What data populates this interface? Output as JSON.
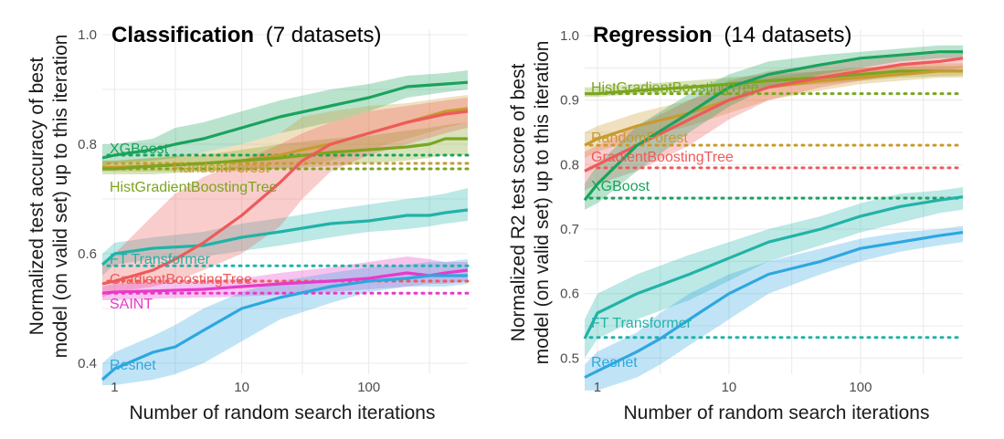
{
  "chart_data": [
    {
      "type": "line",
      "title": "Classification",
      "subtitle": "(7 datasets)",
      "xlabel": "Number of random search iterations",
      "ylabel_lines": [
        "Normalized test accuracy of best",
        "model (on valid set) up to this iteration"
      ],
      "x_scale": "log10",
      "xlim": [
        0.8,
        600
      ],
      "ylim": [
        0.38,
        1.01
      ],
      "x_ticks": [
        {
          "value": 1,
          "label": "1"
        },
        {
          "value": 10,
          "label": "10"
        },
        {
          "value": 100,
          "label": "100"
        }
      ],
      "y_ticks": [
        {
          "value": 0.4,
          "label": "0.4"
        },
        {
          "value": 0.6,
          "label": "0.6"
        },
        {
          "value": 0.8,
          "label": "0.8"
        },
        {
          "value": 1.0,
          "label": "1.0"
        }
      ],
      "series": [
        {
          "name": "XGBoost",
          "color": "#19a35c",
          "default_value": 0.78,
          "x": [
            0.8,
            1,
            2,
            3,
            5,
            10,
            20,
            50,
            100,
            200,
            400,
            600
          ],
          "y": [
            0.775,
            0.78,
            0.79,
            0.8,
            0.81,
            0.83,
            0.85,
            0.87,
            0.885,
            0.905,
            0.91,
            0.913
          ],
          "lower": [
            0.76,
            0.765,
            0.77,
            0.775,
            0.785,
            0.8,
            0.82,
            0.84,
            0.86,
            0.885,
            0.895,
            0.9
          ],
          "upper": [
            0.8,
            0.8,
            0.81,
            0.83,
            0.84,
            0.86,
            0.88,
            0.9,
            0.91,
            0.925,
            0.93,
            0.935
          ]
        },
        {
          "name": "RandomForest",
          "color": "#c99a2e",
          "default_value": 0.765,
          "x": [
            0.8,
            1,
            2,
            5,
            10,
            20,
            30,
            50,
            100,
            200,
            400,
            600
          ],
          "y": [
            0.758,
            0.758,
            0.76,
            0.765,
            0.77,
            0.78,
            0.79,
            0.8,
            0.82,
            0.84,
            0.86,
            0.865
          ],
          "lower": [
            0.75,
            0.75,
            0.75,
            0.75,
            0.75,
            0.755,
            0.76,
            0.77,
            0.79,
            0.81,
            0.83,
            0.84
          ],
          "upper": [
            0.77,
            0.77,
            0.775,
            0.785,
            0.8,
            0.82,
            0.85,
            0.86,
            0.87,
            0.875,
            0.885,
            0.89
          ]
        },
        {
          "name": "HistGradientBoostingTree",
          "color": "#7ba51f",
          "default_value": 0.755,
          "x": [
            0.8,
            1,
            2,
            5,
            10,
            20,
            50,
            100,
            200,
            300,
            400,
            600
          ],
          "y": [
            0.755,
            0.755,
            0.76,
            0.765,
            0.77,
            0.775,
            0.785,
            0.79,
            0.795,
            0.8,
            0.81,
            0.81
          ],
          "lower": [
            0.745,
            0.745,
            0.745,
            0.75,
            0.755,
            0.755,
            0.76,
            0.765,
            0.77,
            0.775,
            0.78,
            0.78
          ],
          "upper": [
            0.77,
            0.77,
            0.775,
            0.78,
            0.79,
            0.8,
            0.81,
            0.815,
            0.825,
            0.83,
            0.835,
            0.84
          ]
        },
        {
          "name": "FT Transformer",
          "color": "#21b3a8",
          "default_value": 0.578,
          "x": [
            0.8,
            1,
            2,
            5,
            10,
            20,
            50,
            100,
            200,
            300,
            400,
            600
          ],
          "y": [
            0.58,
            0.6,
            0.61,
            0.615,
            0.63,
            0.64,
            0.655,
            0.66,
            0.67,
            0.67,
            0.675,
            0.68
          ],
          "lower": [
            0.56,
            0.58,
            0.59,
            0.595,
            0.605,
            0.615,
            0.63,
            0.64,
            0.645,
            0.65,
            0.655,
            0.66
          ],
          "upper": [
            0.6,
            0.62,
            0.63,
            0.64,
            0.655,
            0.665,
            0.68,
            0.69,
            0.7,
            0.705,
            0.71,
            0.72
          ]
        },
        {
          "name": "GradientBoostingTree",
          "color": "#ee5a5a",
          "default_value": 0.55,
          "x": [
            0.8,
            1,
            2,
            3,
            5,
            10,
            20,
            30,
            50,
            100,
            200,
            400,
            600
          ],
          "y": [
            0.545,
            0.55,
            0.57,
            0.59,
            0.62,
            0.67,
            0.73,
            0.77,
            0.8,
            0.82,
            0.84,
            0.855,
            0.86
          ],
          "lower": [
            0.52,
            0.53,
            0.54,
            0.55,
            0.57,
            0.6,
            0.65,
            0.7,
            0.75,
            0.78,
            0.8,
            0.82,
            0.83
          ],
          "upper": [
            0.58,
            0.6,
            0.67,
            0.71,
            0.74,
            0.77,
            0.8,
            0.82,
            0.84,
            0.86,
            0.87,
            0.88,
            0.885
          ]
        },
        {
          "name": "SAINT",
          "color": "#e839c9",
          "default_value": 0.528,
          "x": [
            0.8,
            1,
            2,
            5,
            10,
            20,
            50,
            100,
            200,
            300,
            400,
            600
          ],
          "y": [
            0.528,
            0.53,
            0.532,
            0.535,
            0.54,
            0.545,
            0.55,
            0.555,
            0.565,
            0.56,
            0.565,
            0.57
          ],
          "lower": [
            0.515,
            0.515,
            0.518,
            0.52,
            0.522,
            0.525,
            0.53,
            0.535,
            0.54,
            0.545,
            0.545,
            0.55
          ],
          "upper": [
            0.54,
            0.545,
            0.548,
            0.55,
            0.555,
            0.565,
            0.575,
            0.585,
            0.595,
            0.59,
            0.585,
            0.585
          ]
        },
        {
          "name": "Resnet",
          "color": "#2ea7e0",
          "default_value": null,
          "x": [
            0.8,
            1,
            2,
            3,
            5,
            10,
            20,
            50,
            100,
            200,
            300,
            400,
            600
          ],
          "y": [
            0.37,
            0.39,
            0.42,
            0.43,
            0.46,
            0.5,
            0.52,
            0.54,
            0.55,
            0.555,
            0.56,
            0.56,
            0.56
          ],
          "lower": [
            0.36,
            0.36,
            0.37,
            0.38,
            0.4,
            0.44,
            0.48,
            0.51,
            0.53,
            0.54,
            0.54,
            0.54,
            0.545
          ],
          "upper": [
            0.4,
            0.42,
            0.45,
            0.47,
            0.5,
            0.53,
            0.55,
            0.565,
            0.575,
            0.58,
            0.585,
            0.585,
            0.59
          ]
        }
      ]
    },
    {
      "type": "line",
      "title": "Regression",
      "subtitle": "(14 datasets)",
      "xlabel": "Number of random search iterations",
      "ylabel_lines": [
        "Normalized R2 test score of best",
        "model (on valid set) up to this iteration"
      ],
      "x_scale": "log10",
      "xlim": [
        0.8,
        600
      ],
      "ylim": [
        0.475,
        1.01
      ],
      "x_ticks": [
        {
          "value": 1,
          "label": "1"
        },
        {
          "value": 10,
          "label": "10"
        },
        {
          "value": 100,
          "label": "100"
        }
      ],
      "y_ticks": [
        {
          "value": 0.5,
          "label": "0.5"
        },
        {
          "value": 0.6,
          "label": "0.6"
        },
        {
          "value": 0.7,
          "label": "0.7"
        },
        {
          "value": 0.8,
          "label": "0.8"
        },
        {
          "value": 0.9,
          "label": "0.9"
        },
        {
          "value": 1.0,
          "label": "1.0"
        }
      ],
      "series": [
        {
          "name": "HistGradientBoostingTree",
          "color": "#7ba51f",
          "default_value": 0.91,
          "x": [
            0.8,
            1,
            2,
            5,
            10,
            20,
            50,
            100,
            200,
            400,
            600
          ],
          "y": [
            0.91,
            0.91,
            0.915,
            0.92,
            0.925,
            0.93,
            0.935,
            0.94,
            0.945,
            0.945,
            0.945
          ],
          "lower": [
            0.905,
            0.905,
            0.91,
            0.912,
            0.915,
            0.92,
            0.925,
            0.93,
            0.935,
            0.937,
            0.938
          ],
          "upper": [
            0.92,
            0.92,
            0.925,
            0.93,
            0.935,
            0.94,
            0.945,
            0.95,
            0.952,
            0.953,
            0.953
          ]
        },
        {
          "name": "RandomForest",
          "color": "#c99a2e",
          "default_value": 0.83,
          "x": [
            0.8,
            1,
            2,
            5,
            10,
            20,
            50,
            100,
            200,
            400,
            600
          ],
          "y": [
            0.83,
            0.84,
            0.86,
            0.88,
            0.9,
            0.92,
            0.93,
            0.935,
            0.94,
            0.945,
            0.945
          ],
          "lower": [
            0.81,
            0.82,
            0.84,
            0.86,
            0.88,
            0.9,
            0.915,
            0.925,
            0.93,
            0.935,
            0.935
          ],
          "upper": [
            0.85,
            0.86,
            0.88,
            0.9,
            0.92,
            0.935,
            0.945,
            0.95,
            0.955,
            0.957,
            0.957
          ]
        },
        {
          "name": "GradientBoostingTree",
          "color": "#ee5a5a",
          "default_value": 0.795,
          "x": [
            0.8,
            1,
            2,
            5,
            10,
            20,
            50,
            100,
            200,
            400,
            600
          ],
          "y": [
            0.79,
            0.8,
            0.83,
            0.87,
            0.9,
            0.92,
            0.935,
            0.945,
            0.955,
            0.96,
            0.965
          ],
          "lower": [
            0.76,
            0.77,
            0.79,
            0.83,
            0.87,
            0.9,
            0.92,
            0.93,
            0.94,
            0.945,
            0.95
          ],
          "upper": [
            0.82,
            0.83,
            0.86,
            0.9,
            0.93,
            0.945,
            0.955,
            0.962,
            0.968,
            0.972,
            0.975
          ]
        },
        {
          "name": "XGBoost",
          "color": "#19a35c",
          "default_value": 0.748,
          "x": [
            0.8,
            1,
            2,
            5,
            10,
            20,
            50,
            100,
            200,
            400,
            600
          ],
          "y": [
            0.745,
            0.77,
            0.83,
            0.88,
            0.92,
            0.94,
            0.955,
            0.965,
            0.97,
            0.975,
            0.975
          ],
          "lower": [
            0.73,
            0.74,
            0.79,
            0.85,
            0.89,
            0.92,
            0.94,
            0.95,
            0.96,
            0.965,
            0.965
          ],
          "upper": [
            0.77,
            0.8,
            0.86,
            0.91,
            0.94,
            0.96,
            0.97,
            0.975,
            0.98,
            0.985,
            0.985
          ]
        },
        {
          "name": "FT Transformer",
          "color": "#21b3a8",
          "default_value": 0.532,
          "x": [
            0.8,
            1,
            2,
            5,
            10,
            20,
            50,
            100,
            200,
            400,
            600
          ],
          "y": [
            0.53,
            0.57,
            0.6,
            0.63,
            0.655,
            0.68,
            0.7,
            0.72,
            0.735,
            0.745,
            0.75
          ],
          "lower": [
            0.5,
            0.53,
            0.56,
            0.59,
            0.62,
            0.65,
            0.675,
            0.695,
            0.71,
            0.725,
            0.73
          ],
          "upper": [
            0.56,
            0.6,
            0.63,
            0.66,
            0.68,
            0.7,
            0.72,
            0.74,
            0.755,
            0.76,
            0.765
          ]
        },
        {
          "name": "Resnet",
          "color": "#2ea7e0",
          "default_value": null,
          "x": [
            0.8,
            1,
            2,
            3,
            5,
            10,
            20,
            50,
            100,
            200,
            400,
            600
          ],
          "y": [
            0.47,
            0.48,
            0.51,
            0.53,
            0.56,
            0.6,
            0.63,
            0.65,
            0.67,
            0.68,
            0.69,
            0.695
          ],
          "lower": [
            0.45,
            0.45,
            0.47,
            0.49,
            0.52,
            0.56,
            0.6,
            0.63,
            0.65,
            0.665,
            0.675,
            0.68
          ],
          "upper": [
            0.49,
            0.51,
            0.54,
            0.57,
            0.6,
            0.63,
            0.65,
            0.67,
            0.685,
            0.695,
            0.7,
            0.705
          ]
        }
      ]
    }
  ]
}
